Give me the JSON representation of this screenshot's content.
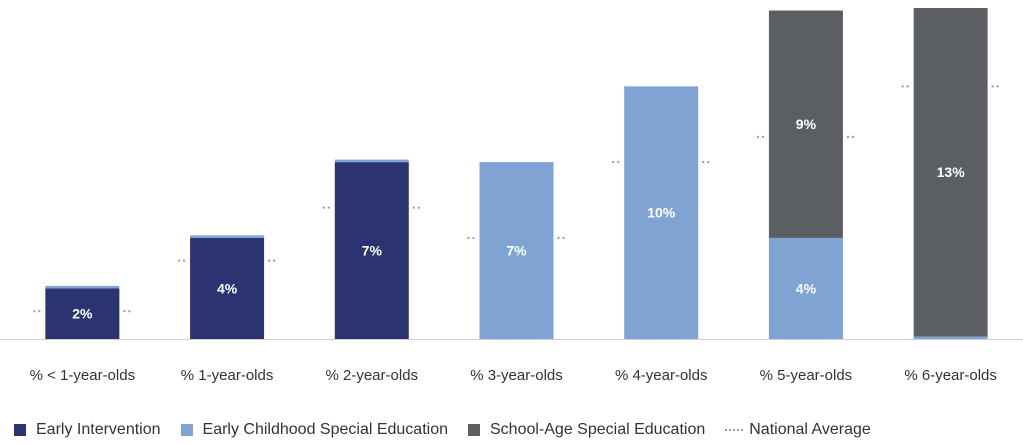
{
  "chart_data": {
    "type": "bar",
    "stacked": true,
    "categories": [
      "% < 1-year-olds",
      "% 1-year-olds",
      "% 2-year-olds",
      "% 3-year-olds",
      "% 4-year-olds",
      "% 5-year-olds",
      "% 6-year-olds"
    ],
    "series": [
      {
        "name": "Early Intervention",
        "color": "#2b3470",
        "values": [
          2,
          4,
          7,
          0,
          0,
          0,
          0
        ],
        "labels": [
          "2%",
          "4%",
          "7%",
          "",
          "",
          "",
          ""
        ]
      },
      {
        "name": "Early Childhood Special Education",
        "color": "#7fa3d3",
        "values": [
          0.1,
          0.1,
          0.1,
          7,
          10,
          4,
          0.1
        ],
        "labels": [
          "",
          "",
          "",
          "7%",
          "10%",
          "4%",
          ""
        ]
      },
      {
        "name": "School-Age Special Education",
        "color": "#5b5e63",
        "values": [
          0,
          0,
          0,
          0,
          0,
          9,
          13
        ],
        "labels": [
          "",
          "",
          "",
          "",
          "",
          "9%",
          "13%"
        ]
      }
    ],
    "national_average": {
      "name": "National Average",
      "color": "#9a9a9a",
      "values": [
        1.1,
        3.1,
        5.2,
        4.0,
        7.0,
        8.0,
        10.0
      ]
    },
    "ylim": [
      0,
      13.1
    ],
    "legend_position": "bottom-left",
    "grid": false
  }
}
